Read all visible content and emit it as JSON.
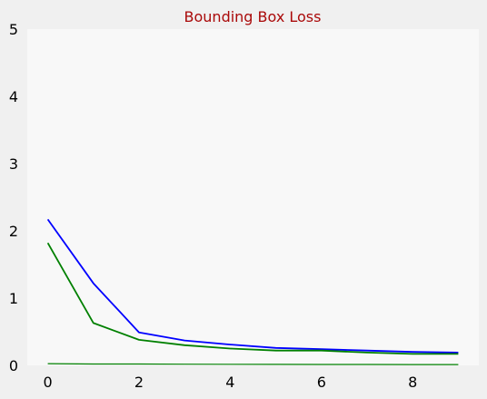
{
  "chart_data": {
    "type": "line",
    "title": "Bounding Box Loss",
    "xlabel": "",
    "ylabel": "",
    "xlim": [
      -0.45,
      9.45
    ],
    "ylim": [
      0,
      5
    ],
    "xticks": [
      0,
      2,
      4,
      6,
      8
    ],
    "yticks": [
      0,
      1,
      2,
      3,
      4,
      5
    ],
    "grid": false,
    "legend": "none",
    "x": [
      0,
      1,
      2,
      3,
      4,
      5,
      6,
      7,
      8,
      9
    ],
    "series": [
      {
        "color": "#0000ff",
        "values": [
          2.17,
          1.22,
          0.49,
          0.37,
          0.31,
          0.26,
          0.24,
          0.22,
          0.2,
          0.19
        ]
      },
      {
        "color": "#008000",
        "values": [
          1.82,
          0.63,
          0.38,
          0.3,
          0.25,
          0.22,
          0.22,
          0.19,
          0.17,
          0.17
        ]
      },
      {
        "color": "#008000",
        "values": [
          0.025,
          0.02,
          0.02,
          0.018,
          0.016,
          0.015,
          0.014,
          0.013,
          0.012,
          0.012
        ]
      }
    ]
  },
  "colors": {
    "figure_background": "#f0f0f0",
    "plot_background": "#f8f8f8",
    "title": "#aa0a0a"
  }
}
